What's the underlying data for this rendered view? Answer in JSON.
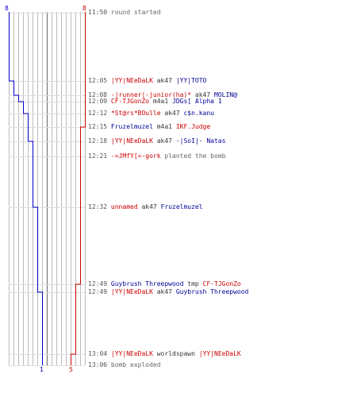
{
  "colors": {
    "team_blue": "#0000cc",
    "team_red": "#cc0000",
    "grid": "#bbbbbb",
    "grid_mid": "#777777"
  },
  "start_counts": {
    "blue": "8",
    "red": "8"
  },
  "end_counts": {
    "blue": "1",
    "red": "5"
  },
  "events": [
    {
      "time": "11:50",
      "text": "round started",
      "type": "status"
    },
    {
      "time": "12:05",
      "killer": "|YY|NEeDaLK",
      "killer_team": "red",
      "weapon": "ak47",
      "victim": "|YY|TOTO",
      "victim_team": "blue",
      "type": "kill"
    },
    {
      "time": "12:08",
      "killer": "-|runner|-junior(ha)*",
      "killer_team": "red",
      "weapon": "ak47",
      "victim": "MOLIN@",
      "victim_team": "blue",
      "type": "kill"
    },
    {
      "time": "12:09",
      "killer": "CF-TJGonZo",
      "killer_team": "red",
      "weapon": "m4a1",
      "victim": "JDGs[ Alpha 1",
      "victim_team": "blue",
      "type": "kill"
    },
    {
      "time": "12:12",
      "killer": "*St@rs*BOulle",
      "killer_team": "red",
      "weapon": "ak47",
      "victim": "c$n.kanu",
      "victim_team": "blue",
      "type": "kill"
    },
    {
      "time": "12:15",
      "killer": "Fruzelmuzel",
      "killer_team": "blue",
      "weapon": "m4a1",
      "victim": "IKF.Judge",
      "victim_team": "red",
      "type": "kill"
    },
    {
      "time": "12:18",
      "killer": "|YY|NEeDaLK",
      "killer_team": "red",
      "weapon": "ak47",
      "victim": "-|SoI|- Natas",
      "victim_team": "blue",
      "type": "kill"
    },
    {
      "time": "12:21",
      "actor": "-=JMfY[=-gork",
      "text": "planted the bomb",
      "type": "plant"
    },
    {
      "time": "12:32",
      "killer": "unnamed",
      "killer_team": "red",
      "weapon": "ak47",
      "victim": "Fruzelmuzel",
      "victim_team": "blue",
      "type": "kill"
    },
    {
      "time": "12:49",
      "killer": "Guybrush Threepwood",
      "killer_team": "blue",
      "weapon": "tmp",
      "victim": "CF-TJGonZo",
      "victim_team": "red",
      "type": "kill"
    },
    {
      "time": "12:49",
      "killer": "|YY|NEeDaLK",
      "killer_team": "red",
      "weapon": "ak47",
      "victim": "Guybrush Threepwood",
      "victim_team": "blue",
      "type": "kill"
    },
    {
      "time": "13:04",
      "killer": "|YY|NEeDaLK",
      "killer_team": "red",
      "weapon": "worldspawn",
      "victim": "|YY|NEeDaLK",
      "victim_team": "red",
      "type": "kill"
    },
    {
      "time": "13:06",
      "text": "bomb exploded",
      "type": "status"
    }
  ],
  "chart_data": {
    "type": "line",
    "series": [
      {
        "color": "#0000cc",
        "values": [
          8,
          7,
          6,
          5,
          4,
          4,
          3,
          3,
          2,
          2,
          1,
          1,
          1
        ]
      },
      {
        "color": "#cc0000",
        "values": [
          8,
          8,
          8,
          8,
          8,
          7,
          7,
          7,
          7,
          6,
          6,
          5,
          5
        ]
      }
    ],
    "ylim": [
      0,
      8
    ]
  }
}
